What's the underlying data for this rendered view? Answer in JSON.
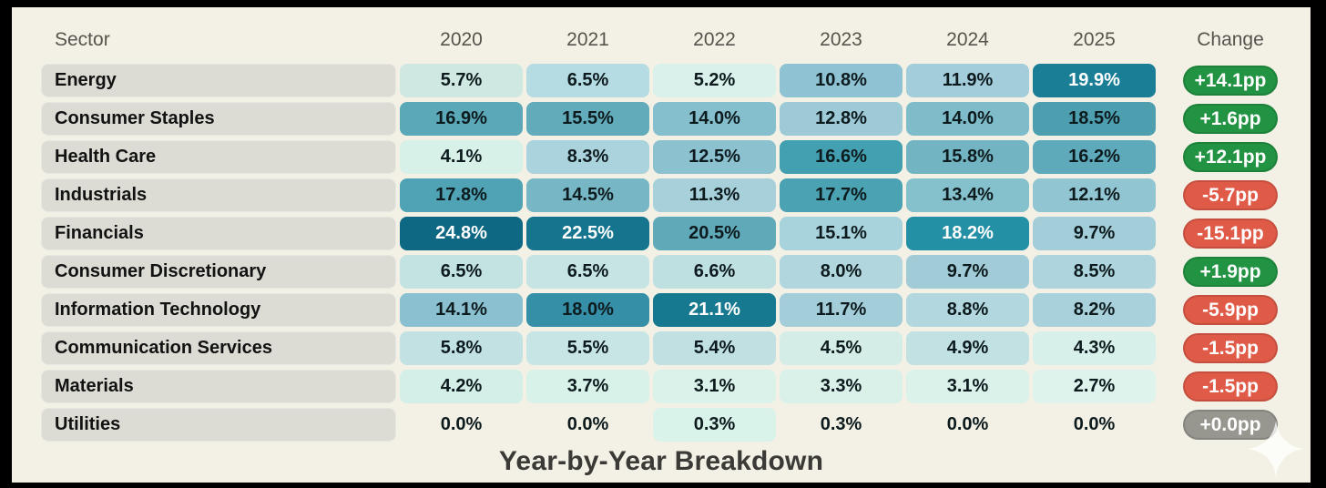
{
  "title": "Year-by-Year Breakdown",
  "colors": {
    "page_bg": "#f3f1e5",
    "frame": "#000000",
    "sector_chip": "#dcdcd4",
    "header_text": "#56544e",
    "title_text": "#3b3a37",
    "positive_badge": "#219342",
    "negative_badge": "#e05a48",
    "neutral_badge": "#97968f"
  },
  "header": {
    "sector": "Sector",
    "years": [
      "2020",
      "2021",
      "2022",
      "2023",
      "2024",
      "2025"
    ],
    "change": "Change"
  },
  "table": {
    "rows": [
      {
        "sector": "Energy",
        "cells": [
          {
            "v": "5.7%",
            "bg": "#cfe9e2",
            "fg": "dark"
          },
          {
            "v": "6.5%",
            "bg": "#b5dbe3",
            "fg": "dark"
          },
          {
            "v": "5.2%",
            "bg": "#d9f1ea",
            "fg": "dark"
          },
          {
            "v": "10.8%",
            "bg": "#8fc2d3",
            "fg": "dark"
          },
          {
            "v": "11.9%",
            "bg": "#a3cddb",
            "fg": "dark"
          },
          {
            "v": "19.9%",
            "bg": "#1a7e97",
            "fg": "light"
          }
        ],
        "change": {
          "label": "+14.1pp",
          "tone": "positive"
        }
      },
      {
        "sector": "Consumer Staples",
        "cells": [
          {
            "v": "16.9%",
            "bg": "#5aa8b8",
            "fg": "dark"
          },
          {
            "v": "15.5%",
            "bg": "#61abbb",
            "fg": "dark"
          },
          {
            "v": "14.0%",
            "bg": "#85bfcd",
            "fg": "dark"
          },
          {
            "v": "12.8%",
            "bg": "#9dcad6",
            "fg": "dark"
          },
          {
            "v": "14.0%",
            "bg": "#7ebcca",
            "fg": "dark"
          },
          {
            "v": "18.5%",
            "bg": "#4d9fb0",
            "fg": "dark"
          }
        ],
        "change": {
          "label": "+1.6pp",
          "tone": "positive"
        }
      },
      {
        "sector": "Health Care",
        "cells": [
          {
            "v": "4.1%",
            "bg": "#d7f0e8",
            "fg": "dark"
          },
          {
            "v": "8.3%",
            "bg": "#abd3dd",
            "fg": "dark"
          },
          {
            "v": "12.5%",
            "bg": "#8cc1d0",
            "fg": "dark"
          },
          {
            "v": "16.6%",
            "bg": "#43a0b0",
            "fg": "dark"
          },
          {
            "v": "15.8%",
            "bg": "#72b4c2",
            "fg": "dark"
          },
          {
            "v": "16.2%",
            "bg": "#5ea9ba",
            "fg": "dark"
          }
        ],
        "change": {
          "label": "+12.1pp",
          "tone": "positive"
        }
      },
      {
        "sector": "Industrials",
        "cells": [
          {
            "v": "17.8%",
            "bg": "#4fa3b4",
            "fg": "dark"
          },
          {
            "v": "14.5%",
            "bg": "#77b6c5",
            "fg": "dark"
          },
          {
            "v": "11.3%",
            "bg": "#a7d0da",
            "fg": "dark"
          },
          {
            "v": "17.7%",
            "bg": "#4aa2b2",
            "fg": "dark"
          },
          {
            "v": "13.4%",
            "bg": "#85c0cd",
            "fg": "dark"
          },
          {
            "v": "12.1%",
            "bg": "#90c5d1",
            "fg": "dark"
          }
        ],
        "change": {
          "label": "-5.7pp",
          "tone": "negative"
        }
      },
      {
        "sector": "Financials",
        "cells": [
          {
            "v": "24.8%",
            "bg": "#0e6883",
            "fg": "light"
          },
          {
            "v": "22.5%",
            "bg": "#15758e",
            "fg": "light"
          },
          {
            "v": "20.5%",
            "bg": "#5fa9b9",
            "fg": "dark"
          },
          {
            "v": "15.1%",
            "bg": "#a8d2dc",
            "fg": "dark"
          },
          {
            "v": "18.2%",
            "bg": "#2490a6",
            "fg": "light"
          },
          {
            "v": "9.7%",
            "bg": "#a3cdd9",
            "fg": "dark"
          }
        ],
        "change": {
          "label": "-15.1pp",
          "tone": "negative"
        }
      },
      {
        "sector": "Consumer Discretionary",
        "cells": [
          {
            "v": "6.5%",
            "bg": "#c3e2e2",
            "fg": "dark"
          },
          {
            "v": "6.5%",
            "bg": "#c6e4e3",
            "fg": "dark"
          },
          {
            "v": "6.6%",
            "bg": "#bfe0e1",
            "fg": "dark"
          },
          {
            "v": "8.0%",
            "bg": "#b1d6de",
            "fg": "dark"
          },
          {
            "v": "9.7%",
            "bg": "#a0cbd7",
            "fg": "dark"
          },
          {
            "v": "8.5%",
            "bg": "#aed4dd",
            "fg": "dark"
          }
        ],
        "change": {
          "label": "+1.9pp",
          "tone": "positive"
        }
      },
      {
        "sector": "Information Technology",
        "cells": [
          {
            "v": "14.1%",
            "bg": "#8ac0cf",
            "fg": "dark"
          },
          {
            "v": "18.0%",
            "bg": "#358fa6",
            "fg": "dark"
          },
          {
            "v": "21.1%",
            "bg": "#17798f",
            "fg": "light"
          },
          {
            "v": "11.7%",
            "bg": "#a3cdd9",
            "fg": "dark"
          },
          {
            "v": "8.8%",
            "bg": "#b3d7df",
            "fg": "dark"
          },
          {
            "v": "8.2%",
            "bg": "#a9d1db",
            "fg": "dark"
          }
        ],
        "change": {
          "label": "-5.9pp",
          "tone": "negative"
        }
      },
      {
        "sector": "Communication Services",
        "cells": [
          {
            "v": "5.8%",
            "bg": "#c2e1e3",
            "fg": "dark"
          },
          {
            "v": "5.5%",
            "bg": "#c8e5e5",
            "fg": "dark"
          },
          {
            "v": "5.4%",
            "bg": "#c0e0e2",
            "fg": "dark"
          },
          {
            "v": "4.5%",
            "bg": "#d4eee7",
            "fg": "dark"
          },
          {
            "v": "4.9%",
            "bg": "#c2e1e3",
            "fg": "dark"
          },
          {
            "v": "4.3%",
            "bg": "#d7f0e9",
            "fg": "dark"
          }
        ],
        "change": {
          "label": "-1.5pp",
          "tone": "negative"
        }
      },
      {
        "sector": "Materials",
        "cells": [
          {
            "v": "4.2%",
            "bg": "#d4efe7",
            "fg": "dark"
          },
          {
            "v": "3.7%",
            "bg": "#d8f1e9",
            "fg": "dark"
          },
          {
            "v": "3.1%",
            "bg": "#dbf2eb",
            "fg": "dark"
          },
          {
            "v": "3.3%",
            "bg": "#daf1ea",
            "fg": "dark"
          },
          {
            "v": "3.1%",
            "bg": "#dbf2eb",
            "fg": "dark"
          },
          {
            "v": "2.7%",
            "bg": "#ddf3ec",
            "fg": "dark"
          }
        ],
        "change": {
          "label": "-1.5pp",
          "tone": "negative"
        }
      },
      {
        "sector": "Utilities",
        "cells": [
          {
            "v": "0.0%",
            "bg": "none",
            "fg": "dark"
          },
          {
            "v": "0.0%",
            "bg": "none",
            "fg": "dark"
          },
          {
            "v": "0.3%",
            "bg": "#d9f3ea",
            "fg": "dark"
          },
          {
            "v": "0.3%",
            "bg": "none",
            "fg": "dark"
          },
          {
            "v": "0.0%",
            "bg": "none",
            "fg": "dark"
          },
          {
            "v": "0.0%",
            "bg": "none",
            "fg": "dark"
          }
        ],
        "change": {
          "label": "+0.0pp",
          "tone": "neutral"
        }
      }
    ]
  },
  "chart_data": {
    "type": "heatmap",
    "title": "Year-by-Year Breakdown",
    "unit": "%",
    "x": [
      "2020",
      "2021",
      "2022",
      "2023",
      "2024",
      "2025"
    ],
    "series": [
      {
        "name": "Energy",
        "values": [
          5.7,
          6.5,
          5.2,
          10.8,
          11.9,
          19.9
        ],
        "change_pp": 14.1
      },
      {
        "name": "Consumer Staples",
        "values": [
          16.9,
          15.5,
          14.0,
          12.8,
          14.0,
          18.5
        ],
        "change_pp": 1.6
      },
      {
        "name": "Health Care",
        "values": [
          4.1,
          8.3,
          12.5,
          16.6,
          15.8,
          16.2
        ],
        "change_pp": 12.1
      },
      {
        "name": "Industrials",
        "values": [
          17.8,
          14.5,
          11.3,
          17.7,
          13.4,
          12.1
        ],
        "change_pp": -5.7
      },
      {
        "name": "Financials",
        "values": [
          24.8,
          22.5,
          20.5,
          15.1,
          18.2,
          9.7
        ],
        "change_pp": -15.1
      },
      {
        "name": "Consumer Discretionary",
        "values": [
          6.5,
          6.5,
          6.6,
          8.0,
          9.7,
          8.5
        ],
        "change_pp": 1.9
      },
      {
        "name": "Information Technology",
        "values": [
          14.1,
          18.0,
          21.1,
          11.7,
          8.8,
          8.2
        ],
        "change_pp": -5.9
      },
      {
        "name": "Communication Services",
        "values": [
          5.8,
          5.5,
          5.4,
          4.5,
          4.9,
          4.3
        ],
        "change_pp": -1.5
      },
      {
        "name": "Materials",
        "values": [
          4.2,
          3.7,
          3.1,
          3.3,
          3.1,
          2.7
        ],
        "change_pp": -1.5
      },
      {
        "name": "Utilities",
        "values": [
          0.0,
          0.0,
          0.3,
          0.3,
          0.0,
          0.0
        ],
        "change_pp": 0.0
      }
    ],
    "color_scale": {
      "low": "#ddf3ec",
      "high": "#0e6883",
      "low_value": 0,
      "high_value": 24.8
    },
    "legend": "none",
    "grid": false
  }
}
